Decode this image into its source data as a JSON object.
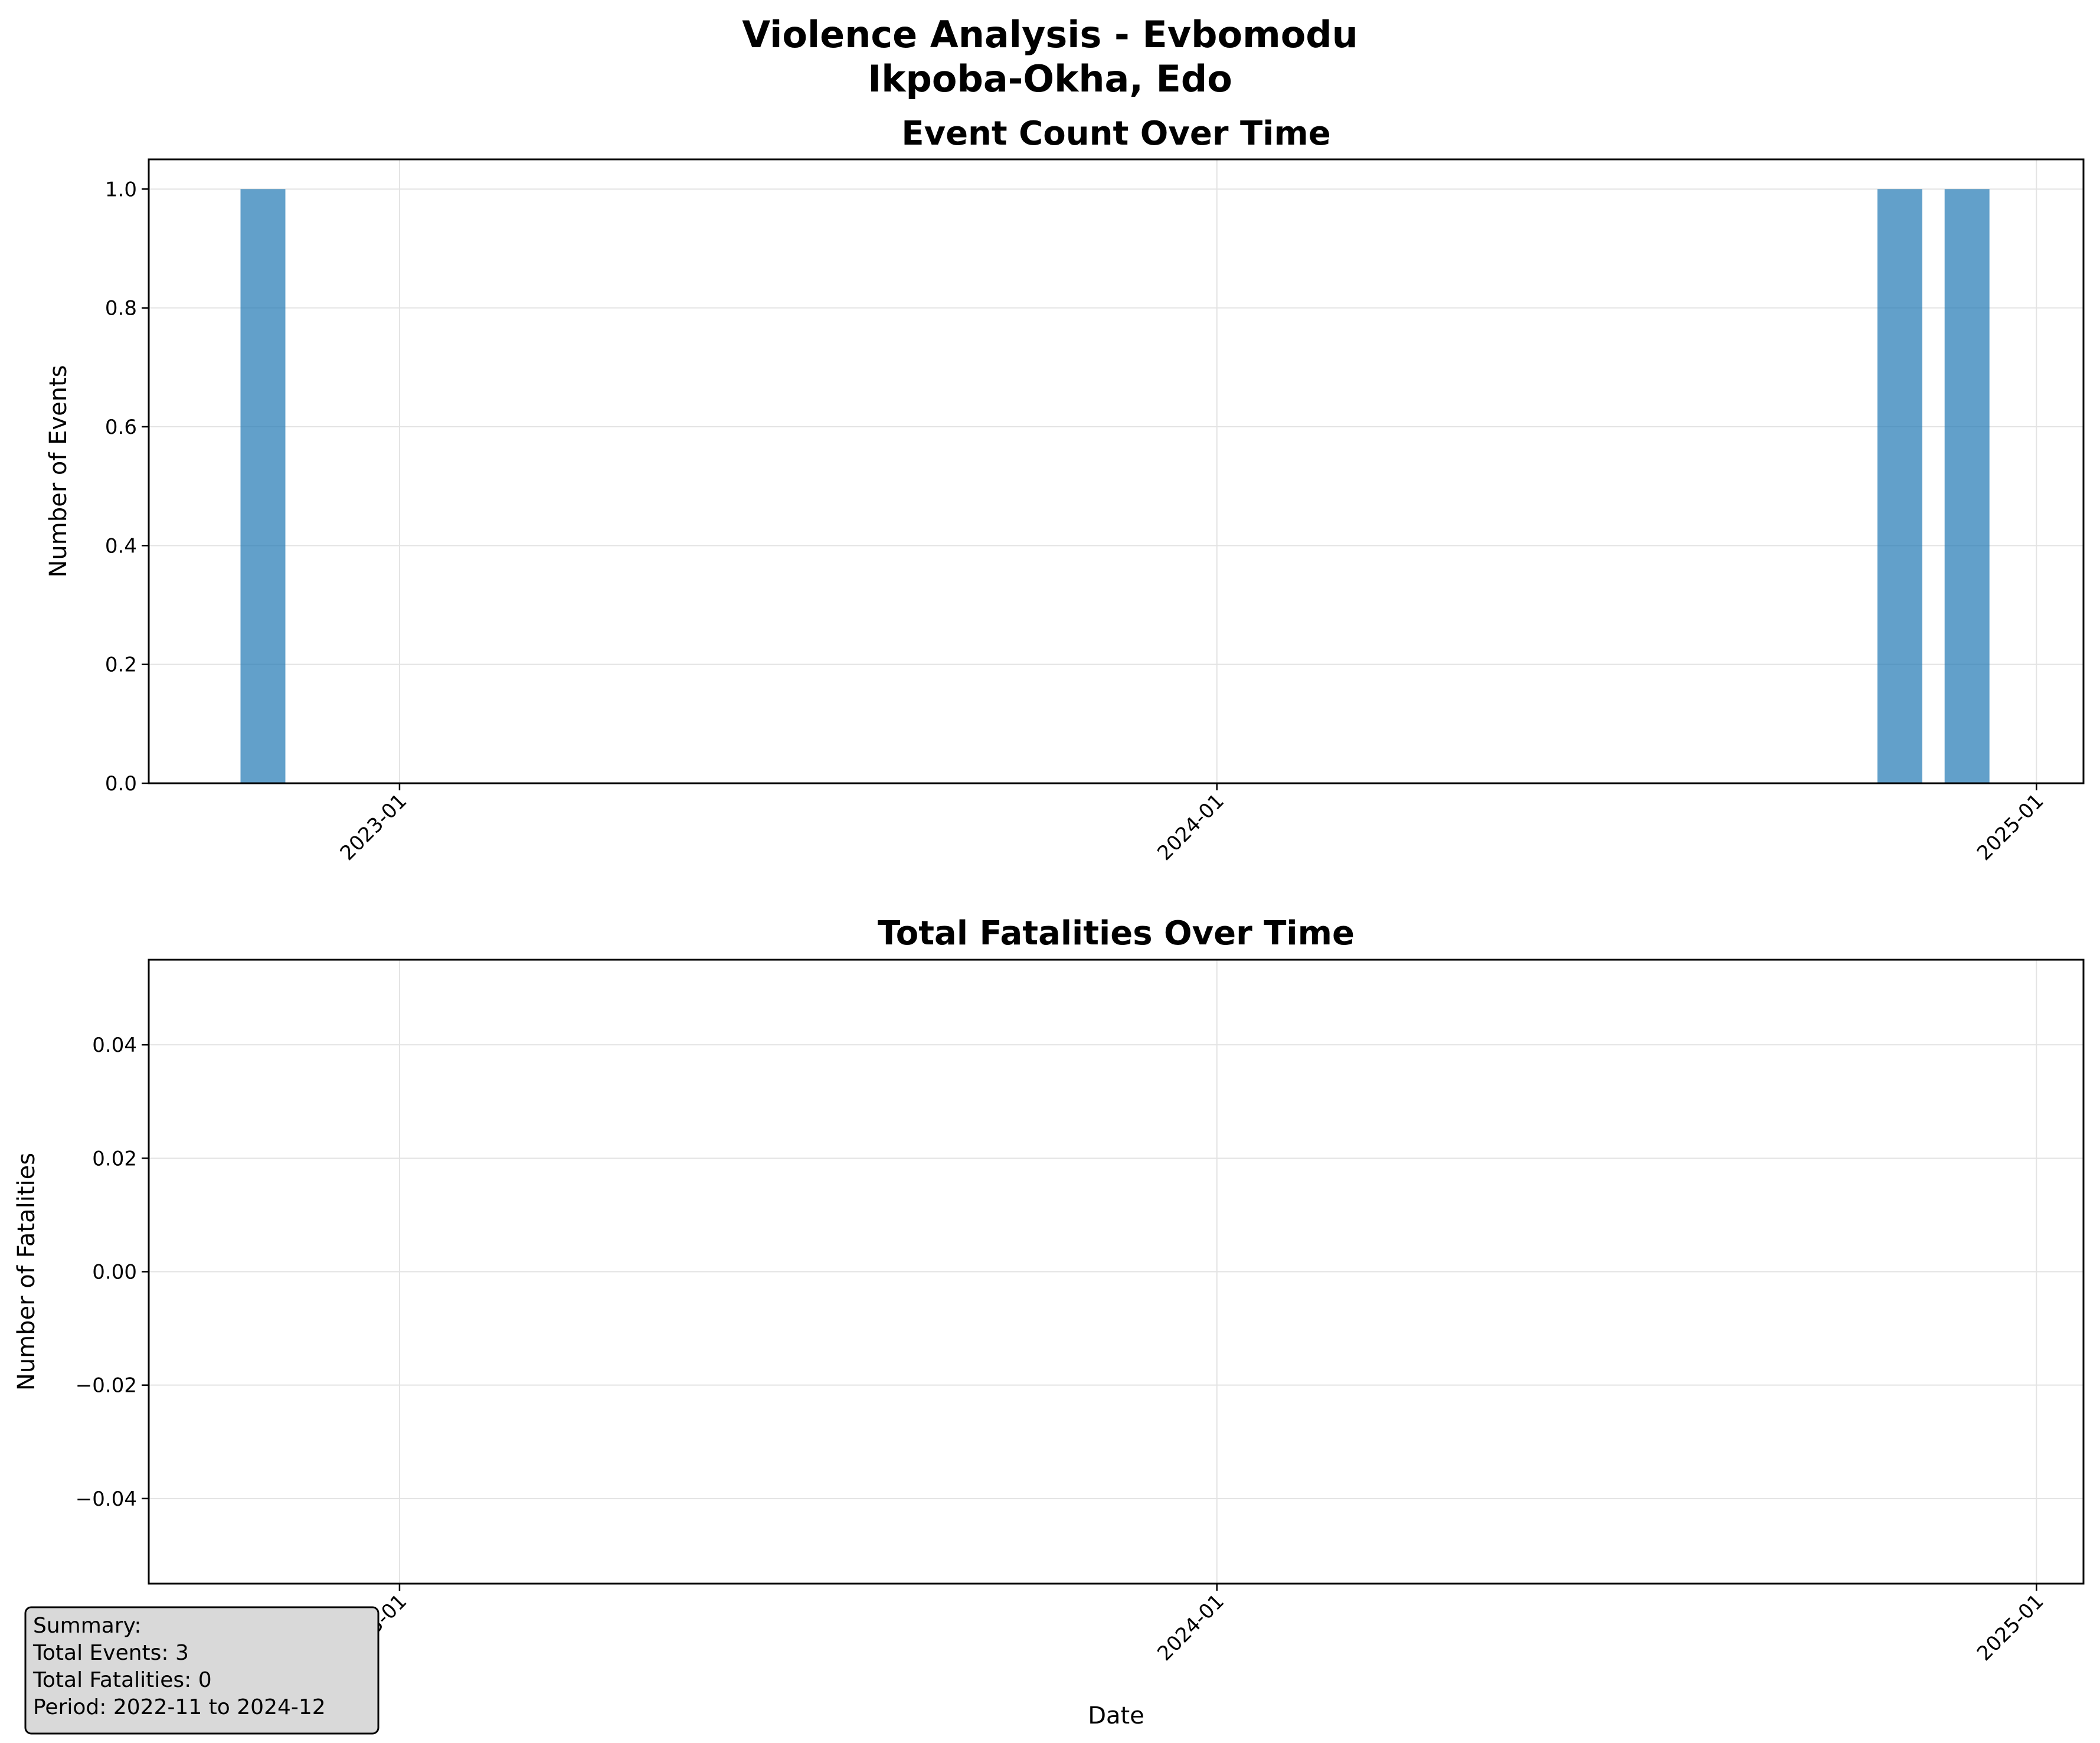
{
  "figure": {
    "title_line1": "Violence Analysis - Evbomodu",
    "title_line2": "Ikpoba-Okha, Edo"
  },
  "chart_data": [
    {
      "type": "bar",
      "title": "Event Count Over Time",
      "xlabel": "",
      "ylabel": "Number of Events",
      "x_axis_type": "date",
      "xlim": [
        "2022-09-11",
        "2025-01-22"
      ],
      "ylim": [
        0,
        1.05
      ],
      "yticks": [
        0.0,
        0.2,
        0.4,
        0.6,
        0.8,
        1.0
      ],
      "ytick_labels": [
        "0.0",
        "0.2",
        "0.4",
        "0.6",
        "0.8",
        "1.0"
      ],
      "xticks": [
        "2023-01",
        "2024-01",
        "2025-01"
      ],
      "grid": true,
      "bar_color": "#1f77b4",
      "bar_alpha": 0.7,
      "x": [
        "2022-11",
        "2024-11",
        "2024-12"
      ],
      "values": [
        1,
        1,
        1
      ]
    },
    {
      "type": "line",
      "title": "Total Fatalities Over Time",
      "xlabel": "Date",
      "ylabel": "Number of Fatalities",
      "x_axis_type": "date",
      "xlim": [
        "2022-09-11",
        "2025-01-22"
      ],
      "ylim": [
        -0.055,
        0.055
      ],
      "yticks": [
        -0.04,
        -0.02,
        0.0,
        0.02,
        0.04
      ],
      "ytick_labels": [
        "−0.04",
        "−0.02",
        "0.00",
        "0.02",
        "0.04"
      ],
      "xticks": [
        "2023-01",
        "2024-01",
        "2025-01"
      ],
      "grid": true,
      "x": [],
      "values": []
    }
  ],
  "summary": {
    "heading": "Summary:",
    "total_events": "Total Events: 3",
    "total_fatalities": "Total Fatalities: 0",
    "period": "Period: 2022-11 to 2024-12"
  }
}
